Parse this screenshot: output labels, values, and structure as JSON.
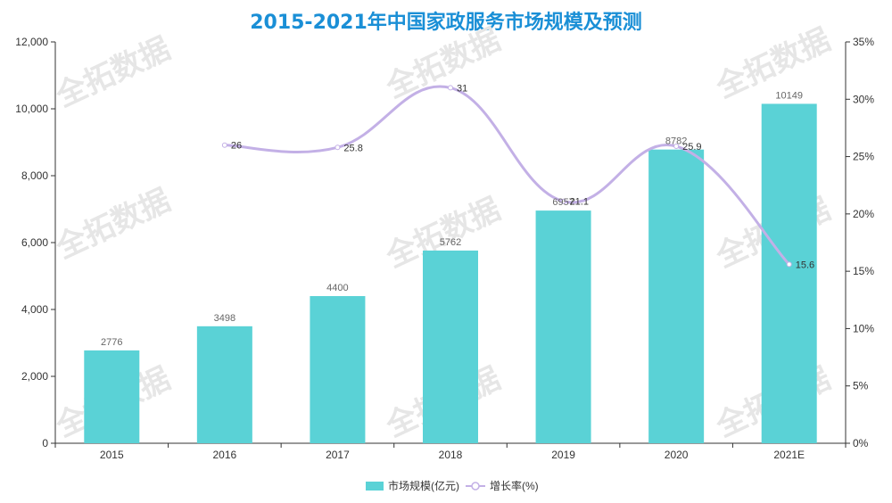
{
  "chart_data": {
    "type": "bar",
    "title": "2015-2021年中国家政服务市场规模及预测",
    "categories": [
      "2015",
      "2016",
      "2017",
      "2018",
      "2019",
      "2020",
      "2021E"
    ],
    "series": [
      {
        "name": "市场规模(亿元)",
        "type": "bar",
        "axis": "left",
        "color": "#5ad2d6",
        "values": [
          2776,
          3498,
          4400,
          5762,
          6957,
          8782,
          10149
        ],
        "labels": [
          "2776",
          "3498",
          "4400",
          "5762",
          "6957",
          "8782",
          "10149"
        ]
      },
      {
        "name": "增长率(%)",
        "type": "line",
        "smooth": true,
        "axis": "right",
        "color": "#c3b0e6",
        "values": [
          null,
          26,
          25.8,
          31,
          21.1,
          25.9,
          15.6
        ],
        "labels": [
          "",
          "26",
          "25.8",
          "31",
          "21.1",
          "25.9",
          "15.6"
        ]
      }
    ],
    "y_left": {
      "min": 0,
      "max": 12000,
      "ticks": [
        "0",
        "2,000",
        "4,000",
        "6,000",
        "8,000",
        "10,000",
        "12,000"
      ]
    },
    "y_right": {
      "min": 0,
      "max": 35,
      "ticks": [
        "0%",
        "5%",
        "10%",
        "15%",
        "20%",
        "25%",
        "30%",
        "35%"
      ]
    },
    "grid": false,
    "legend_position": "bottom-center",
    "watermark": "全拓数据"
  }
}
